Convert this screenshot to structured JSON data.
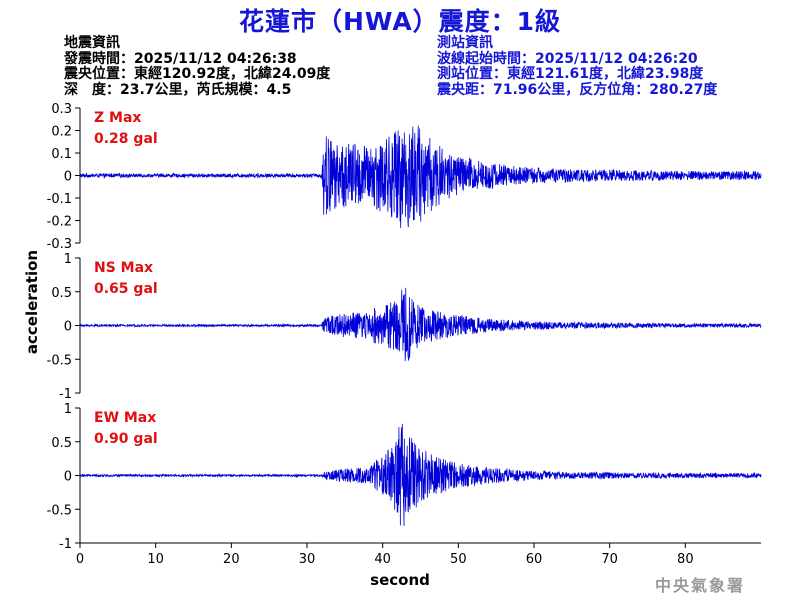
{
  "title": "花蓮市（HWA）震度：1級",
  "quake_info": {
    "heading": "地震資訊",
    "origin_time": "發震時間：2025/11/12 04:26:38",
    "epicenter": "震央位置：東經120.92度，北緯24.09度",
    "depth_magnitude": "深　度：23.7公里，芮氏規模：4.5"
  },
  "station_info": {
    "heading": "測站資訊",
    "wave_start": "波線起始時間：2025/11/12 04:26:20",
    "station_location": "測站位置：東經121.61度，北緯23.98度",
    "distance_azimuth": "震央距：71.96公里，反方位角：280.27度"
  },
  "credit": "中央氣象署",
  "colors": {
    "trace": "#0000d8",
    "max_label": "#e01010",
    "title": "#1616d6",
    "axis": "#000000"
  },
  "chart_data": {
    "type": "line",
    "xlabel": "second",
    "ylabel": "acceleration",
    "xlim": [
      0,
      90
    ],
    "xticks": [
      0,
      10,
      20,
      30,
      40,
      50,
      60,
      70,
      80
    ],
    "grid": false,
    "signal_onset_s": 32,
    "panels": [
      {
        "name": "Z Max",
        "max_label": "0.28 gal",
        "ylim": [
          -0.3,
          0.3
        ],
        "yticks": [
          0.3,
          0.2,
          0.1,
          0,
          -0.1,
          -0.2,
          -0.3
        ],
        "ytick_labels": [
          "0.3",
          "0.2",
          "0.1",
          "0",
          "-0.1",
          "-0.2",
          "-0.3"
        ],
        "peak": 0.28,
        "envelope": [
          [
            0,
            0.008
          ],
          [
            31.9,
            0.008
          ],
          [
            32.2,
            0.2
          ],
          [
            34,
            0.14
          ],
          [
            36,
            0.15
          ],
          [
            38,
            0.13
          ],
          [
            40,
            0.17
          ],
          [
            42,
            0.21
          ],
          [
            44,
            0.25
          ],
          [
            46,
            0.18
          ],
          [
            48,
            0.12
          ],
          [
            50,
            0.09
          ],
          [
            54,
            0.06
          ],
          [
            58,
            0.04
          ],
          [
            64,
            0.03
          ],
          [
            72,
            0.025
          ],
          [
            80,
            0.02
          ],
          [
            90,
            0.02
          ]
        ]
      },
      {
        "name": "NS Max",
        "max_label": "0.65 gal",
        "ylim": [
          -1,
          1
        ],
        "yticks": [
          1,
          0.5,
          0,
          -0.5,
          -1
        ],
        "ytick_labels": [
          "1",
          "0.5",
          "0",
          "-0.5",
          "-1"
        ],
        "peak": 0.65,
        "envelope": [
          [
            0,
            0.015
          ],
          [
            31.9,
            0.015
          ],
          [
            32.3,
            0.12
          ],
          [
            34,
            0.18
          ],
          [
            37,
            0.2
          ],
          [
            40,
            0.3
          ],
          [
            42,
            0.45
          ],
          [
            43,
            0.62
          ],
          [
            44,
            0.38
          ],
          [
            46,
            0.25
          ],
          [
            50,
            0.15
          ],
          [
            55,
            0.09
          ],
          [
            60,
            0.06
          ],
          [
            70,
            0.04
          ],
          [
            80,
            0.03
          ],
          [
            90,
            0.025
          ]
        ]
      },
      {
        "name": "EW Max",
        "max_label": "0.90 gal",
        "ylim": [
          -1,
          1
        ],
        "yticks": [
          1,
          0.5,
          0,
          -0.5,
          -1
        ],
        "ytick_labels": [
          "1",
          "0.5",
          "0",
          "-0.5",
          "-1"
        ],
        "peak": 0.9,
        "envelope": [
          [
            0,
            0.015
          ],
          [
            31.9,
            0.015
          ],
          [
            32.3,
            0.06
          ],
          [
            35,
            0.1
          ],
          [
            38,
            0.12
          ],
          [
            40,
            0.3
          ],
          [
            41.5,
            0.5
          ],
          [
            42.5,
            0.85
          ],
          [
            43.5,
            0.6
          ],
          [
            45,
            0.4
          ],
          [
            48,
            0.25
          ],
          [
            52,
            0.15
          ],
          [
            58,
            0.08
          ],
          [
            66,
            0.05
          ],
          [
            76,
            0.04
          ],
          [
            90,
            0.03
          ]
        ]
      }
    ]
  }
}
